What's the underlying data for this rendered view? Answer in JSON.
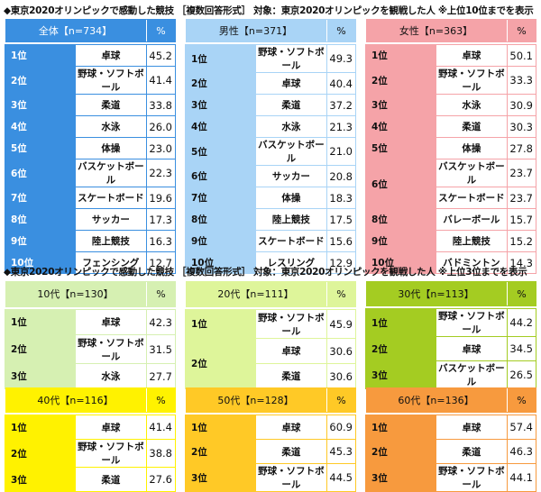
{
  "top": {
    "title": "◆東京2020オリンピックで感動した競技 ［複数回答形式］ 対象：東京2020オリンピックを観戦した人 ※上位10位までを表示",
    "tables": [
      {
        "header": "全体【n=734】",
        "pct_label": "%",
        "color": "#3a8fe0",
        "rank_color": "#4ea2ec",
        "header_text": "#ffffff",
        "rank_text": "#ffffff",
        "rows": [
          {
            "rank": "1位",
            "name": "卓球",
            "pct": "45.2"
          },
          {
            "rank": "2位",
            "name": "野球・ソフトボール",
            "pct": "41.4"
          },
          {
            "rank": "3位",
            "name": "柔道",
            "pct": "33.8"
          },
          {
            "rank": "4位",
            "name": "水泳",
            "pct": "26.0"
          },
          {
            "rank": "5位",
            "name": "体操",
            "pct": "23.0"
          },
          {
            "rank": "6位",
            "name": "バスケットボール",
            "pct": "22.3"
          },
          {
            "rank": "7位",
            "name": "スケートボード",
            "pct": "19.6"
          },
          {
            "rank": "8位",
            "name": "サッカー",
            "pct": "17.3"
          },
          {
            "rank": "9位",
            "name": "陸上競技",
            "pct": "16.3"
          },
          {
            "rank": "10位",
            "name": "フェンシング",
            "pct": "12.7"
          }
        ]
      },
      {
        "header": "男性【n=371】",
        "pct_label": "%",
        "color": "#a9d4f6",
        "rank_color": "#a9d4f6",
        "header_text": "#111111",
        "rank_text": "#111111",
        "rows": [
          {
            "rank": "1位",
            "name": "野球・ソフトボール",
            "pct": "49.3"
          },
          {
            "rank": "2位",
            "name": "卓球",
            "pct": "40.4"
          },
          {
            "rank": "3位",
            "name": "柔道",
            "pct": "37.2"
          },
          {
            "rank": "4位",
            "name": "水泳",
            "pct": "21.3"
          },
          {
            "rank": "5位",
            "name": "バスケットボール",
            "pct": "21.0"
          },
          {
            "rank": "6位",
            "name": "サッカー",
            "pct": "20.8"
          },
          {
            "rank": "7位",
            "name": "体操",
            "pct": "18.3"
          },
          {
            "rank": "8位",
            "name": "陸上競技",
            "pct": "17.5"
          },
          {
            "rank": "9位",
            "name": "スケートボード",
            "pct": "15.6"
          },
          {
            "rank": "10位",
            "name": "レスリング",
            "pct": "12.9"
          }
        ]
      },
      {
        "header": "女性【n=363】",
        "pct_label": "%",
        "color": "#f5a3a8",
        "rank_color": "#f5a3a8",
        "header_text": "#111111",
        "rank_text": "#111111",
        "rows": [
          {
            "rank": "1位",
            "name": "卓球",
            "pct": "50.1"
          },
          {
            "rank": "2位",
            "name": "野球・ソフトボール",
            "pct": "33.3"
          },
          {
            "rank": "3位",
            "name": "水泳",
            "pct": "30.9"
          },
          {
            "rank": "4位",
            "name": "柔道",
            "pct": "30.3"
          },
          {
            "rank": "5位",
            "name": "体操",
            "pct": "27.8"
          },
          {
            "rank": "6位",
            "name": "バスケットボール",
            "pct": "23.7",
            "span": 2
          },
          {
            "rank": "",
            "name": "スケートボード",
            "pct": "23.7"
          },
          {
            "rank": "8位",
            "name": "バレーボール",
            "pct": "15.7"
          },
          {
            "rank": "9位",
            "name": "陸上競技",
            "pct": "15.2"
          },
          {
            "rank": "10位",
            "name": "バドミントン",
            "pct": "14.3"
          }
        ]
      }
    ]
  },
  "bottom": {
    "title": "◆東京2020オリンピックで感動した競技 ［複数回答形式］ 対象：東京2020オリンピックを観戦した人 ※上位3位までを表示",
    "tables": [
      {
        "header": "10代【n=130】",
        "pct_label": "%",
        "color": "#d6f0b2",
        "rank_color": "#d6f0b2",
        "header_text": "#111111",
        "rank_text": "#111111",
        "rows": [
          {
            "rank": "1位",
            "name": "卓球",
            "pct": "42.3"
          },
          {
            "rank": "2位",
            "name": "野球・ソフトボール",
            "pct": "31.5"
          },
          {
            "rank": "3位",
            "name": "水泳",
            "pct": "27.7"
          }
        ]
      },
      {
        "header": "20代【n=111】",
        "pct_label": "%",
        "color": "#def59a",
        "rank_color": "#def59a",
        "header_text": "#111111",
        "rank_text": "#111111",
        "rows": [
          {
            "rank": "1位",
            "name": "野球・ソフトボール",
            "pct": "45.9"
          },
          {
            "rank": "2位",
            "name": "卓球",
            "pct": "30.6",
            "span": 2
          },
          {
            "rank": "",
            "name": "柔道",
            "pct": "30.6"
          }
        ]
      },
      {
        "header": "30代【n=113】",
        "pct_label": "%",
        "color": "#a4cc22",
        "rank_color": "#a4cc22",
        "header_text": "#111111",
        "rank_text": "#111111",
        "rows": [
          {
            "rank": "1位",
            "name": "野球・ソフトボール",
            "pct": "44.2"
          },
          {
            "rank": "2位",
            "name": "卓球",
            "pct": "34.5"
          },
          {
            "rank": "3位",
            "name": "バスケットボール",
            "pct": "26.5"
          }
        ]
      },
      {
        "header": "40代【n=116】",
        "pct_label": "%",
        "color": "#fff200",
        "rank_color": "#fff200",
        "header_text": "#111111",
        "rank_text": "#111111",
        "rows": [
          {
            "rank": "1位",
            "name": "卓球",
            "pct": "41.4"
          },
          {
            "rank": "2位",
            "name": "野球・ソフトボール",
            "pct": "38.8"
          },
          {
            "rank": "3位",
            "name": "柔道",
            "pct": "27.6"
          }
        ]
      },
      {
        "header": "50代【n=128】",
        "pct_label": "%",
        "color": "#ffc926",
        "rank_color": "#ffc926",
        "header_text": "#111111",
        "rank_text": "#111111",
        "rows": [
          {
            "rank": "1位",
            "name": "卓球",
            "pct": "60.9"
          },
          {
            "rank": "2位",
            "name": "柔道",
            "pct": "45.3"
          },
          {
            "rank": "3位",
            "name": "野球・ソフトボール",
            "pct": "44.5"
          }
        ]
      },
      {
        "header": "60代【n=136】",
        "pct_label": "%",
        "color": "#f79a3e",
        "rank_color": "#f79a3e",
        "header_text": "#111111",
        "rank_text": "#111111",
        "rows": [
          {
            "rank": "1位",
            "name": "卓球",
            "pct": "57.4"
          },
          {
            "rank": "2位",
            "name": "柔道",
            "pct": "46.3"
          },
          {
            "rank": "3位",
            "name": "野球・ソフトボール",
            "pct": "44.1"
          }
        ]
      }
    ]
  }
}
